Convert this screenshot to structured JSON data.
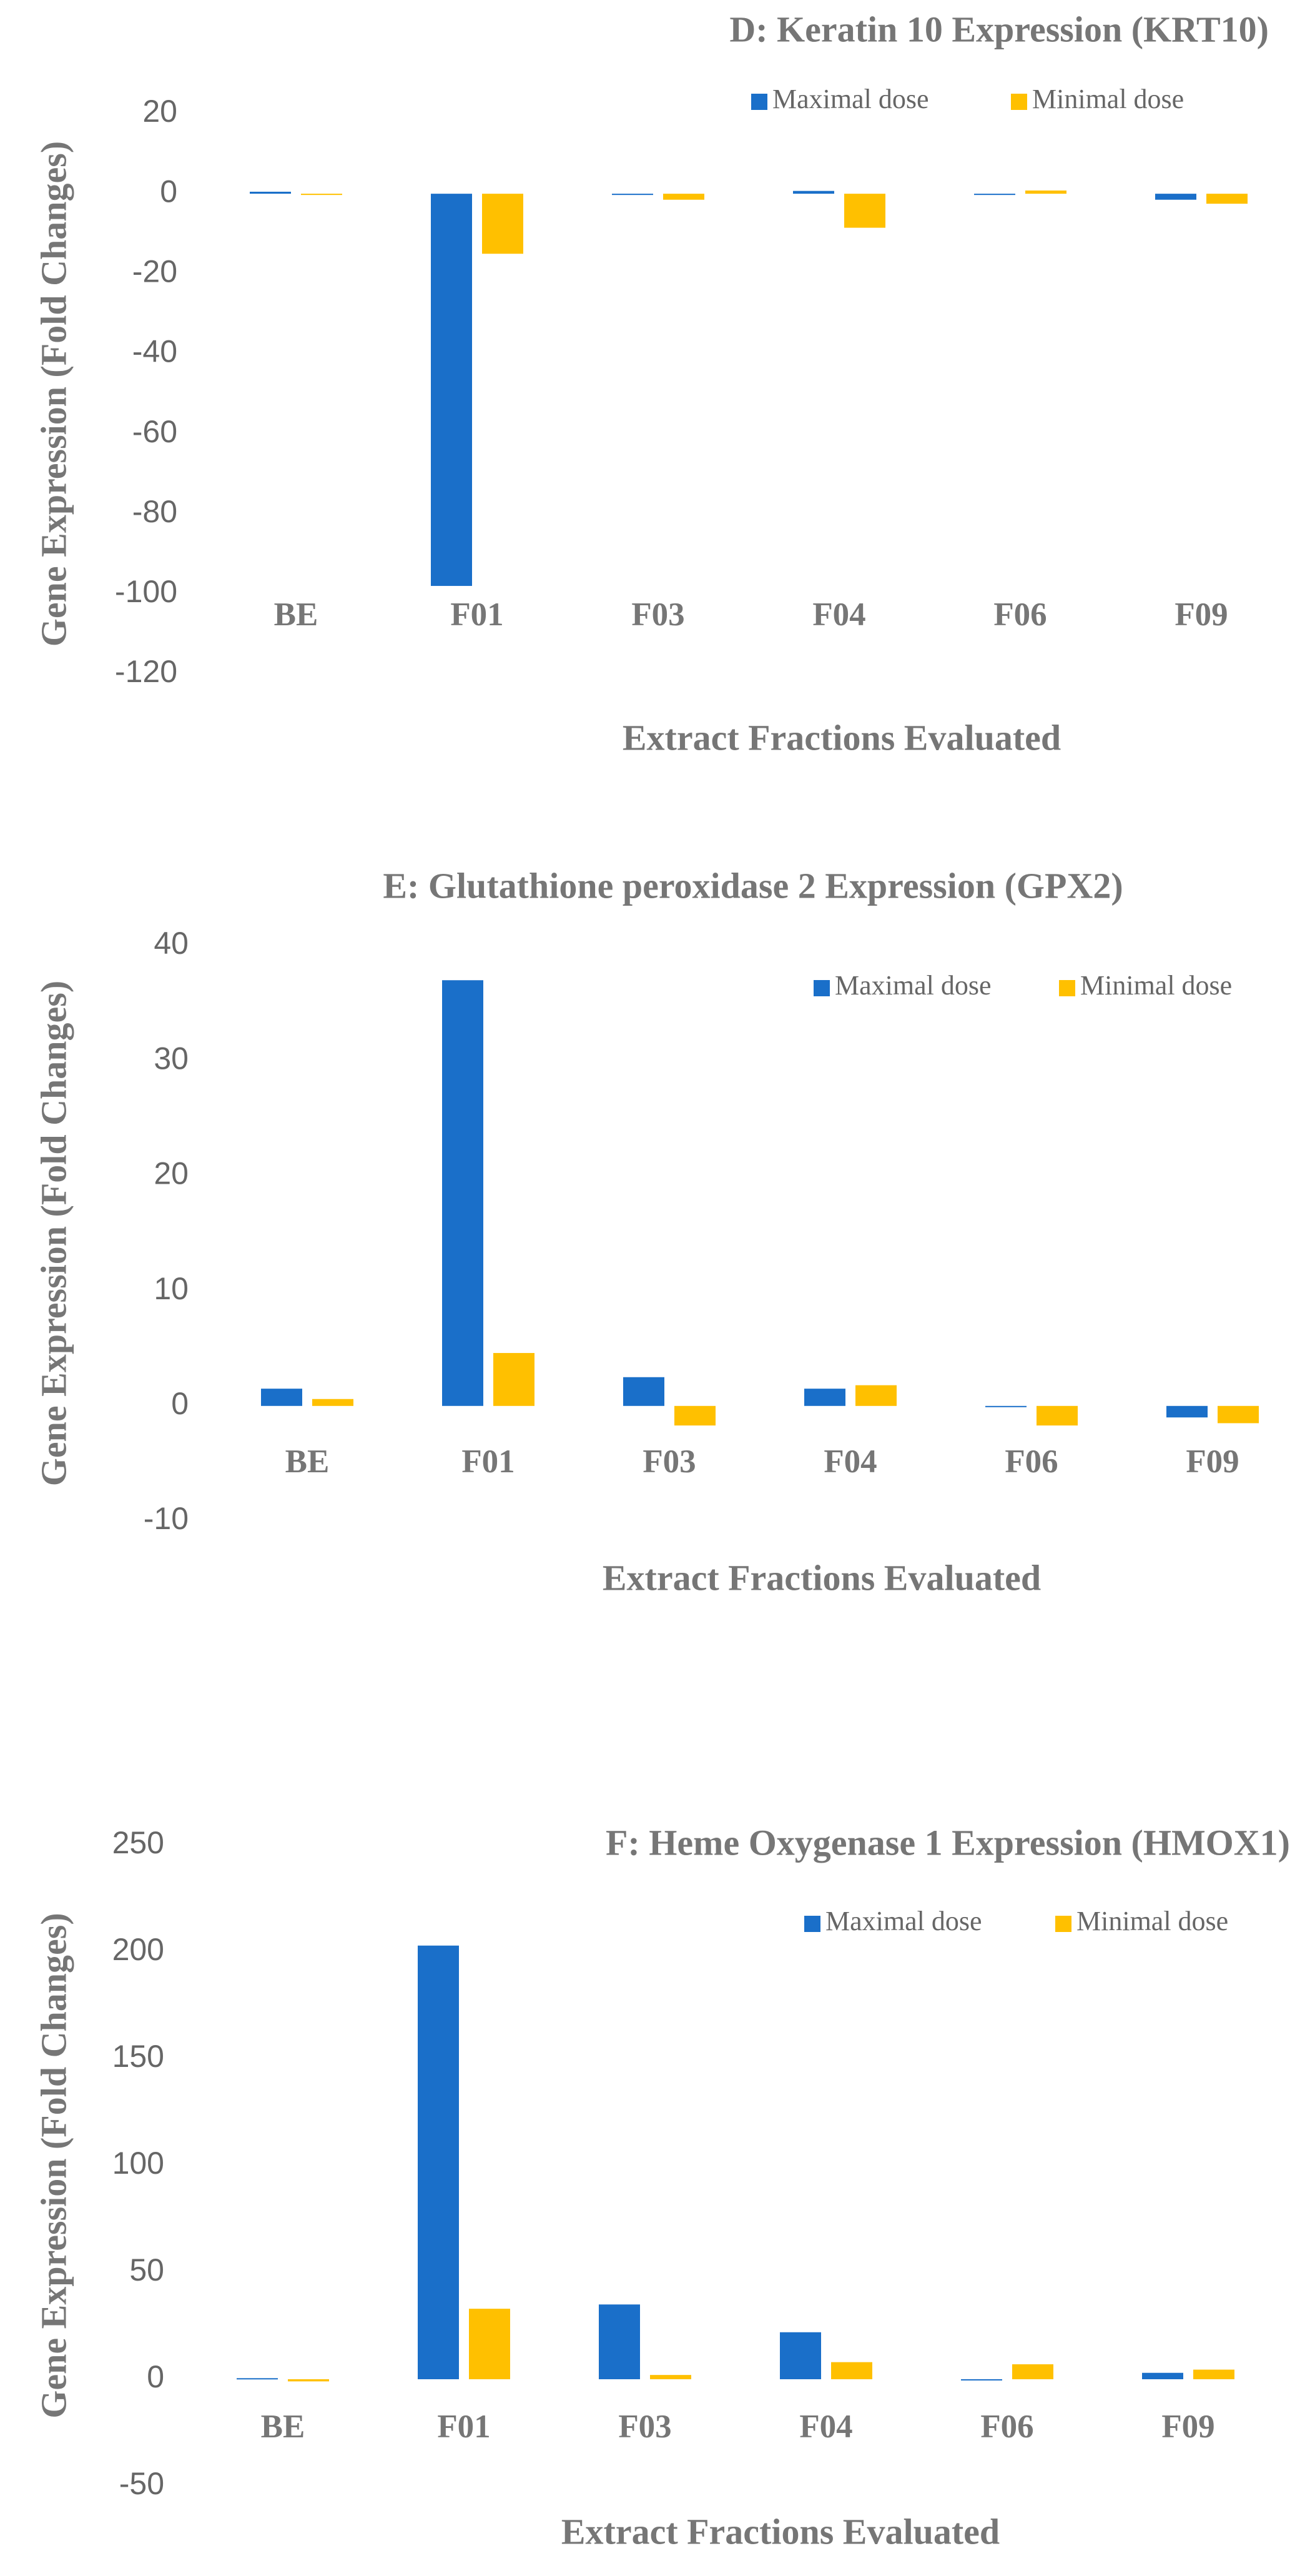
{
  "chart_data": [
    {
      "type": "bar",
      "title": "D: Keratin 10 Expression (KRT10)",
      "x_label": "Extract Fractions Evaluated",
      "y_label": "Gene Expression (Fold Changes)",
      "categories": [
        "BE",
        "F01",
        "F03",
        "F04",
        "F06",
        "F09"
      ],
      "series": [
        {
          "name": "Maximal dose",
          "color": "#1a6fc9",
          "values": [
            0.5,
            -98,
            -0.3,
            0.7,
            0,
            -1.5
          ]
        },
        {
          "name": "Minimal dose",
          "color": "#ffc000",
          "values": [
            -0.3,
            -15,
            -1.5,
            -8.5,
            0.8,
            -2.5
          ]
        }
      ],
      "ylim": [
        -120,
        20
      ],
      "yticks": [
        -120,
        -100,
        -80,
        -60,
        -40,
        -20,
        0,
        20
      ]
    },
    {
      "type": "bar",
      "title": "E: Glutathione peroxidase 2 Expression (GPX2)",
      "x_label": "Extract Fractions Evaluated",
      "y_label": "Gene Expression (Fold Changes)",
      "categories": [
        "BE",
        "F01",
        "F03",
        "F04",
        "F06",
        "F09"
      ],
      "series": [
        {
          "name": "Maximal dose",
          "color": "#1a6fc9",
          "values": [
            1.5,
            37,
            2.5,
            1.5,
            0,
            -1
          ]
        },
        {
          "name": "Minimal dose",
          "color": "#ffc000",
          "values": [
            0.6,
            4.6,
            -1.7,
            1.8,
            -1.7,
            -1.5
          ]
        }
      ],
      "ylim": [
        -10,
        40
      ],
      "yticks": [
        -10,
        0,
        10,
        20,
        30,
        40
      ]
    },
    {
      "type": "bar",
      "title": "F: Heme Oxygenase 1 Expression (HMOX1)",
      "x_label": "Extract Fractions Evaluated",
      "y_label": "Gene Expression (Fold Changes)",
      "categories": [
        "BE",
        "F01",
        "F03",
        "F04",
        "F06",
        "F09"
      ],
      "series": [
        {
          "name": "Maximal dose",
          "color": "#1a6fc9",
          "values": [
            0.5,
            203,
            35,
            22,
            0,
            3
          ]
        },
        {
          "name": "Minimal dose",
          "color": "#ffc000",
          "values": [
            -1,
            33,
            2,
            8,
            7,
            4.5
          ]
        }
      ],
      "ylim": [
        -50,
        250
      ],
      "yticks": [
        -50,
        0,
        50,
        100,
        150,
        200,
        250
      ]
    }
  ]
}
